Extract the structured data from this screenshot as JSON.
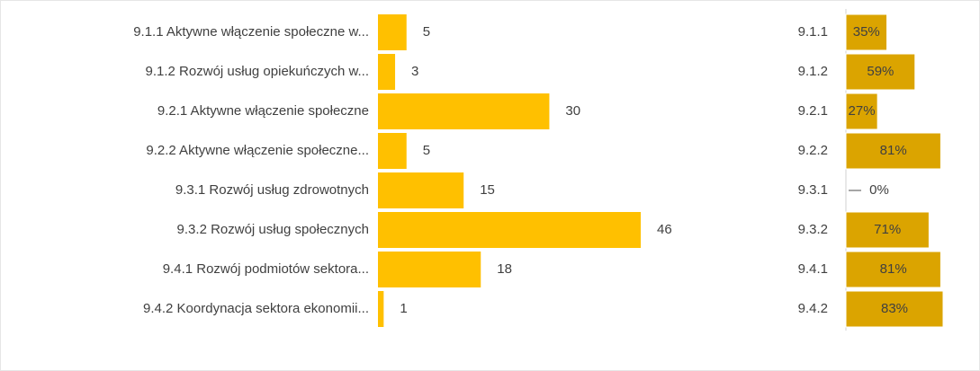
{
  "chart_data": [
    {
      "type": "bar",
      "orientation": "horizontal",
      "color": "#ffc000",
      "categories": [
        "9.1.1 Aktywne włączenie społeczne w...",
        "9.1.2 Rozwój usług opiekuńczych w...",
        "9.2.1 Aktywne włączenie społeczne",
        "9.2.2 Aktywne włączenie społeczne...",
        "9.3.1 Rozwój usług zdrowotnych",
        "9.3.2 Rozwój usług społecznych",
        "9.4.1 Rozwój podmiotów sektora...",
        "9.4.2 Koordynacja sektora ekonomii..."
      ],
      "values": [
        5,
        3,
        30,
        5,
        15,
        46,
        18,
        1
      ]
    },
    {
      "type": "bar",
      "orientation": "horizontal",
      "color": "#dba400",
      "categories": [
        "9.1.1",
        "9.1.2",
        "9.2.1",
        "9.2.2",
        "9.3.1",
        "9.3.2",
        "9.4.1",
        "9.4.2"
      ],
      "values": [
        35,
        59,
        27,
        81,
        0,
        71,
        81,
        83
      ],
      "value_labels": [
        "35%",
        "59%",
        "27%",
        "81%",
        "0%",
        "71%",
        "81%",
        "83%"
      ]
    }
  ]
}
